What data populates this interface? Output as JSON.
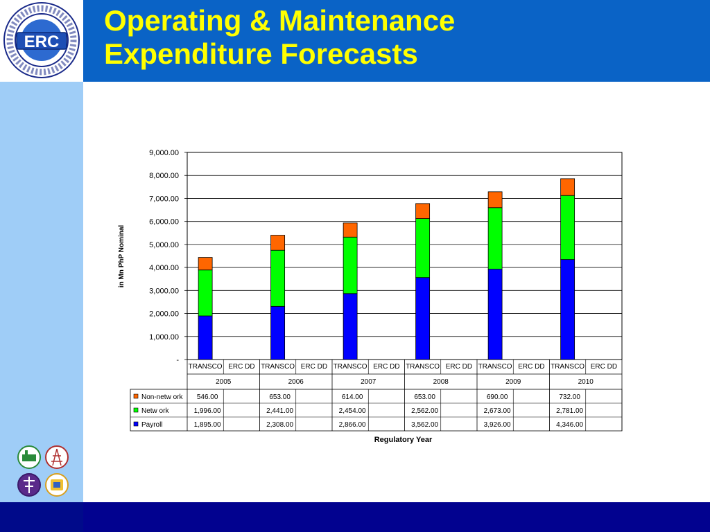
{
  "slide": {
    "title_line1": "Operating & Maintenance",
    "title_line2": "Expenditure Forecasts",
    "logo": {
      "ring_text": "ENERGY REGULATORY COMMISSION · PHILIPPINES",
      "abbrev": "ERC"
    }
  },
  "colors": {
    "header": "#0a63c6",
    "title": "#ffff00",
    "left_band": "#9fcdf7",
    "footer": "#02028f",
    "payroll": "#0000ff",
    "network": "#00ff00",
    "non_network": "#ff6600"
  },
  "chart_data": {
    "type": "bar",
    "stacked": true,
    "xlabel": "Regulatory Year",
    "ylabel": "in Mn PhP Nominal",
    "ylim": [
      0,
      9000
    ],
    "yticks": [
      "-",
      "1,000.00",
      "2,000.00",
      "3,000.00",
      "4,000.00",
      "5,000.00",
      "6,000.00",
      "7,000.00",
      "8,000.00",
      "9,000.00"
    ],
    "grid": true,
    "legend": "data-table-left",
    "years": [
      "2005",
      "2006",
      "2007",
      "2008",
      "2009",
      "2010"
    ],
    "subcategories": [
      "TRANSCO",
      "ERC DD"
    ],
    "series": [
      {
        "name": "Non-network",
        "color": "#ff6600",
        "values": [
          546,
          653,
          614,
          653,
          690,
          732
        ],
        "labels": [
          "546.00",
          "653.00",
          "614.00",
          "653.00",
          "690.00",
          "732.00"
        ]
      },
      {
        "name": "Network",
        "color": "#00ff00",
        "values": [
          1996,
          2441,
          2454,
          2562,
          2673,
          2781
        ],
        "labels": [
          "1,996.00",
          "2,441.00",
          "2,454.00",
          "2,562.00",
          "2,673.00",
          "2,781.00"
        ]
      },
      {
        "name": "Payroll",
        "color": "#0000ff",
        "values": [
          1895,
          2308,
          2866,
          3562,
          3926,
          4346
        ],
        "labels": [
          "1,895.00",
          "2,308.00",
          "2,866.00",
          "3,562.00",
          "3,926.00",
          "4,346.00"
        ]
      }
    ],
    "table_series_labels": [
      "Non-netw ork",
      "Netw ork",
      "Payroll"
    ],
    "subcategory_labels": [
      "TRANSCO",
      "ERC DD"
    ]
  }
}
